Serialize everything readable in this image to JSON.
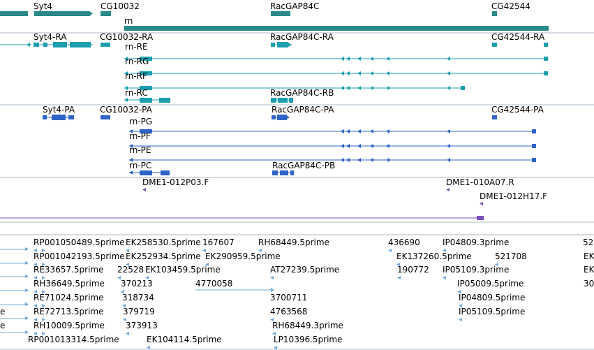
{
  "colors": {
    "gene": "#2a8a8a",
    "transcript_rna": "#1b9fb0",
    "protein": "#2f63c8",
    "clone": "#7a4fc0",
    "est": "#6fa8dc",
    "track_divider": "#a9b7c6"
  },
  "tracks": {
    "genes": {
      "labels": [
        "Syt4",
        "CG10032",
        "RacGAP84C",
        "CG42544",
        "rn"
      ]
    },
    "transcripts": {
      "labels": [
        "Syt4-RA",
        "CG10032-RA",
        "RacGAP84C-RA",
        "CG42544-RA",
        "rn-RE",
        "rn-RG",
        "rn-RF",
        "rn-RC",
        "RacGAP84C-RB"
      ]
    },
    "proteins": {
      "labels": [
        "Syt4-PA",
        "CG10032-PA",
        "RacGAP84C-PA",
        "CG42544-PA",
        "rn-PG",
        "rn-PF",
        "rn-PE",
        "rn-PC",
        "RacGAP84C-PB"
      ]
    },
    "clones": {
      "labels": [
        "DME1-012P03.F",
        "DME1-010A07.R",
        "DME1-012H17.F"
      ]
    },
    "ests": {
      "labels": [
        "RP001050489.5prime",
        "EK258530.5prime",
        "167607",
        "RH68449.5prime",
        "436690",
        "IP04809.3prime",
        "52",
        "RP001042193.5prime",
        "EK252934.5prime",
        "EK290959.5prime",
        "EK137260.5prime",
        "521708",
        "EK",
        "RE33657.5prime",
        "22528",
        "EK103459.5prime",
        "AT27239.5prime",
        "190772",
        "IP05109.3prime",
        "EK",
        "RH36649.5prime",
        "370213",
        "4770058",
        "IP05009.5prime",
        "30",
        "RE71024.5prime",
        "318734",
        "3700711",
        "IP04809.5prime",
        "RE72713.5prime",
        "379719",
        "4763568",
        "IP05109.5prime",
        "RH10009.5prime",
        "373913",
        "RH68449.3prime",
        "RP001013314.5prime",
        "EK104114.5prime",
        "LP10396.5prime",
        "e",
        "e"
      ]
    }
  }
}
